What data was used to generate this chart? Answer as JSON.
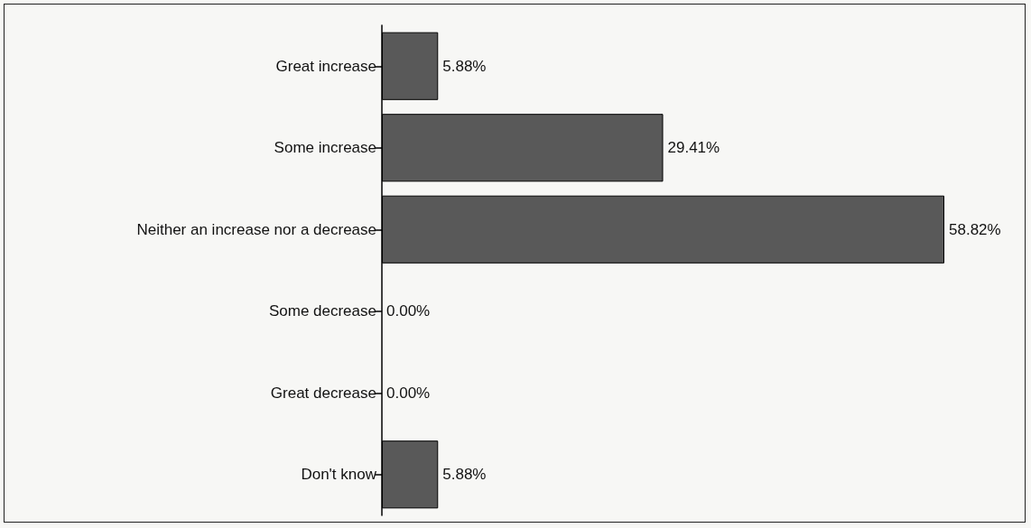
{
  "chart_data": {
    "type": "bar",
    "orientation": "horizontal",
    "categories": [
      "Great increase",
      "Some increase",
      "Neither an increase nor a decrease",
      "Some decrease",
      "Great decrease",
      "Don't know"
    ],
    "values": [
      5.88,
      29.41,
      58.82,
      0,
      0,
      5.88
    ],
    "value_labels": [
      "5.88%",
      "29.41%",
      "58.82%",
      "0.00%",
      "0.00%",
      "5.88%"
    ],
    "color": "#595959",
    "grid": false
  }
}
